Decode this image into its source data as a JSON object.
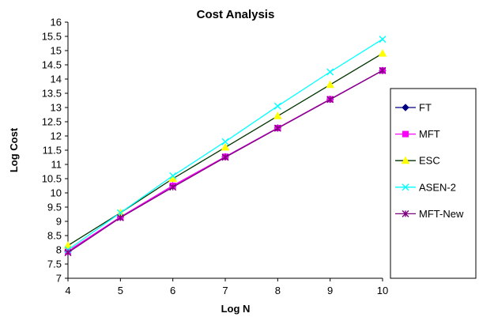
{
  "chart_data": {
    "type": "line",
    "title": "Cost Analysis",
    "xlabel": "Log N",
    "ylabel": "Log Cost",
    "x": [
      4,
      5,
      6,
      7,
      8,
      9,
      10
    ],
    "xlim": [
      4,
      10
    ],
    "ylim": [
      7,
      16
    ],
    "xticks": [
      "4",
      "5",
      "6",
      "7",
      "8",
      "9",
      "10"
    ],
    "yticks": [
      "7",
      "7.5",
      "8",
      "8.5",
      "9",
      "9.5",
      "10",
      "10.5",
      "11",
      "11.5",
      "12",
      "12.5",
      "13",
      "13.5",
      "14",
      "14.5",
      "15",
      "15.5",
      "16"
    ],
    "grid": false,
    "legend_position": "right",
    "series": [
      {
        "name": "FT",
        "color": "#000080",
        "marker": "diamond",
        "values": [
          7.95,
          9.15,
          10.25,
          11.27,
          12.28,
          13.29,
          14.3
        ]
      },
      {
        "name": "MFT",
        "color": "#ff00ff",
        "marker": "square",
        "values": [
          7.95,
          9.15,
          10.25,
          11.27,
          12.28,
          13.29,
          14.3
        ]
      },
      {
        "name": "ESC",
        "color": "#ffff00",
        "marker": "triangle",
        "line_color": "#003300",
        "values": [
          8.15,
          9.3,
          10.5,
          11.6,
          12.7,
          13.8,
          14.9
        ]
      },
      {
        "name": "ASEN-2",
        "color": "#00ffff",
        "marker": "x",
        "values": [
          8.0,
          9.3,
          10.6,
          11.8,
          13.05,
          14.25,
          15.4
        ]
      },
      {
        "name": "MFT-New",
        "color": "#800080",
        "marker": "star",
        "values": [
          7.9,
          9.13,
          10.2,
          11.25,
          12.27,
          13.28,
          14.3
        ]
      }
    ]
  }
}
